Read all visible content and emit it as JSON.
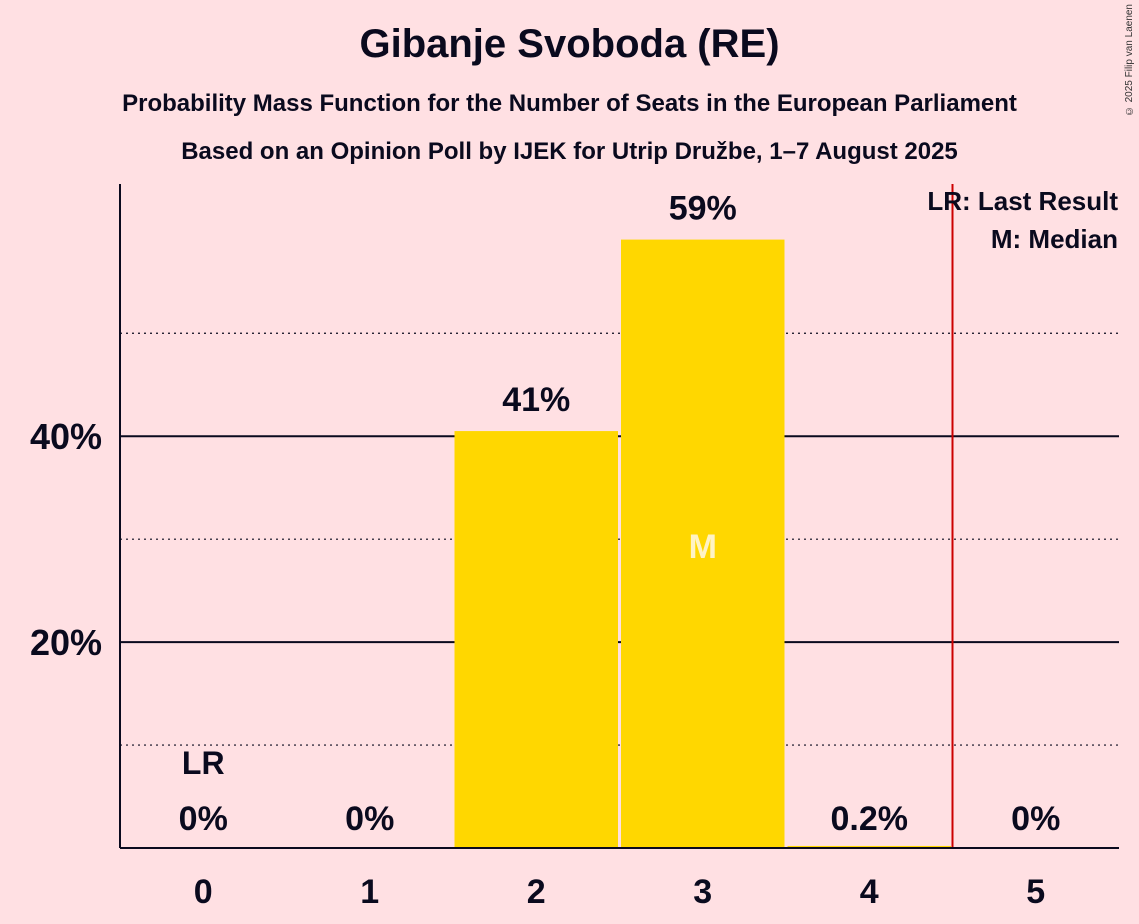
{
  "chart_data": {
    "type": "bar",
    "title": "Gibanje Svoboda (RE)",
    "subtitle": "Probability Mass Function for the Number of Seats in the European Parliament",
    "subtitle2": "Based on an Opinion Poll by IJEK for Utrip Družbe, 1–7 August 2025",
    "categories": [
      "0",
      "1",
      "2",
      "3",
      "4",
      "5"
    ],
    "values": [
      0,
      0,
      40.5,
      59.1,
      0.2,
      0
    ],
    "data_labels": [
      "0%",
      "0%",
      "41%",
      "59%",
      "0.2%",
      "0%"
    ],
    "ylim": [
      0,
      64.5
    ],
    "y_ticks": [
      {
        "value": 20,
        "label": "20%"
      },
      {
        "value": 40,
        "label": "40%"
      }
    ],
    "minor_gridlines": [
      10,
      30,
      50
    ],
    "last_result": {
      "seats": 0,
      "label": "LR"
    },
    "median": {
      "seats": 3,
      "label": "M"
    },
    "threshold_line_after": 4,
    "legend": [
      "LR: Last Result",
      "M: Median"
    ],
    "bar_color": "#FFD700",
    "line_color": "#CC0000",
    "copyright": "© 2025 Filip van Laenen"
  }
}
